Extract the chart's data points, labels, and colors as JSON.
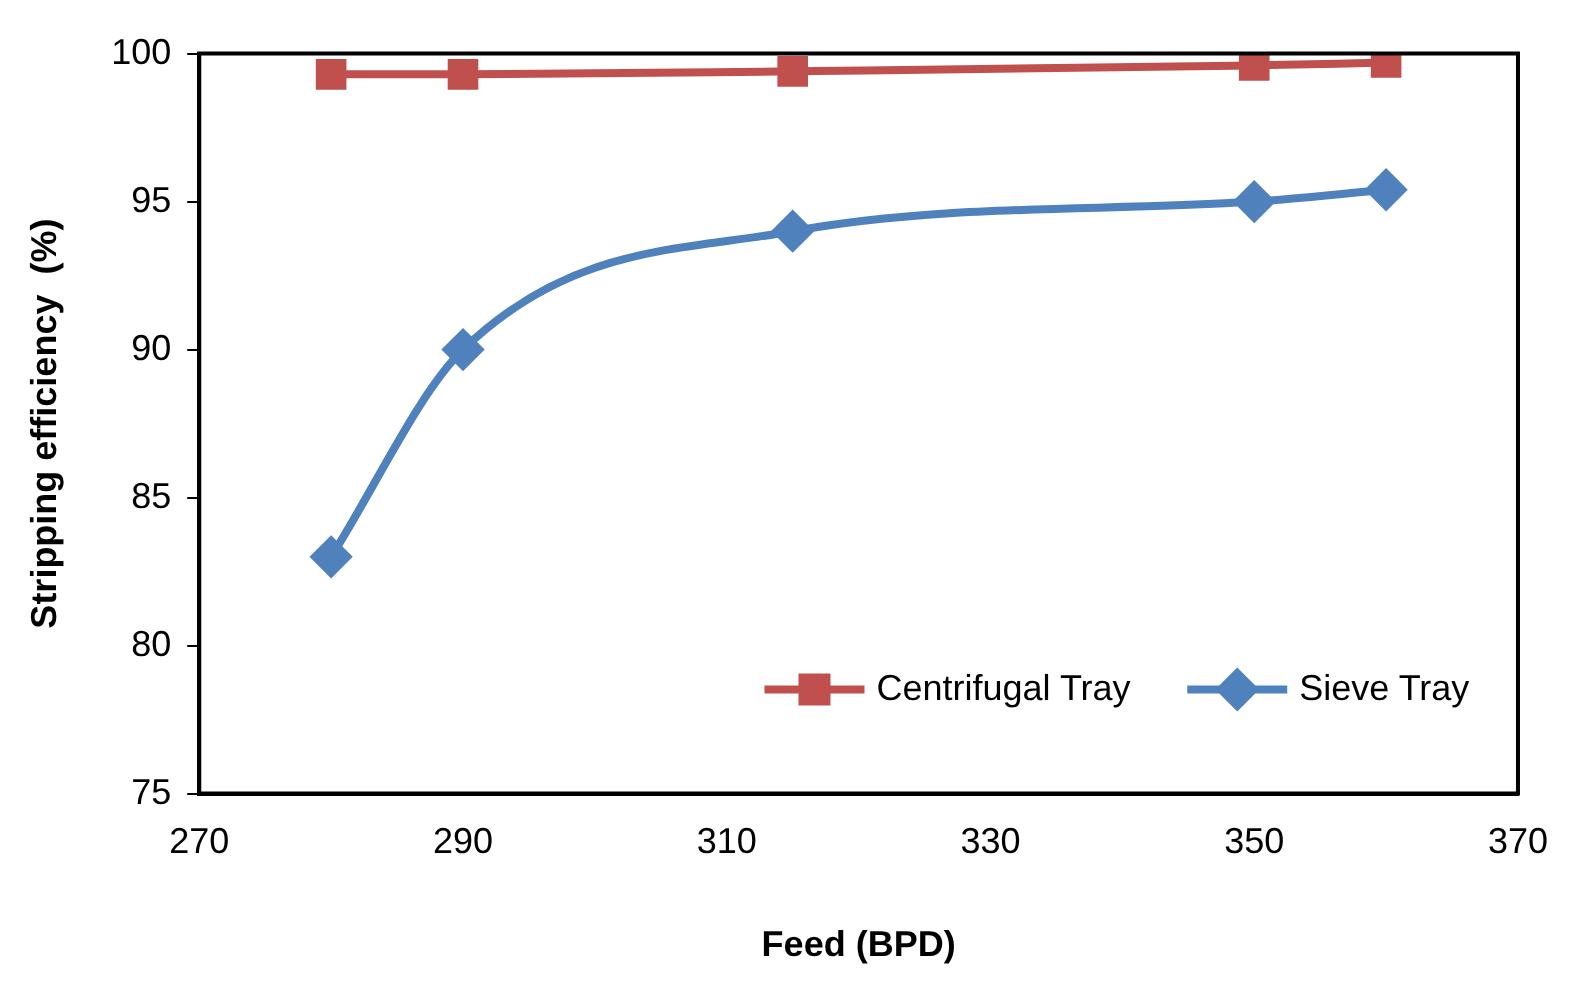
{
  "chart_data": {
    "type": "line",
    "xlabel": "Feed (BPD)",
    "ylabel": "Stripping efficiency  (%)",
    "x": [
      280,
      290,
      315,
      350,
      360
    ],
    "series": [
      {
        "name": "Centrifugal Tray",
        "color": "#c0504d",
        "marker": "square",
        "values": [
          99.3,
          99.3,
          99.4,
          99.6,
          99.7
        ]
      },
      {
        "name": "Sieve Tray",
        "color": "#4f81bd",
        "marker": "diamond",
        "values": [
          83,
          90,
          94,
          95,
          95.4
        ]
      }
    ],
    "xlim": [
      270,
      370
    ],
    "xticks": [
      270,
      290,
      310,
      330,
      350,
      370
    ],
    "ylim": [
      75,
      100
    ],
    "yticks": [
      75,
      80,
      85,
      90,
      95,
      100
    ],
    "grid": false,
    "legend": "bottom right",
    "line_style": "solid"
  }
}
